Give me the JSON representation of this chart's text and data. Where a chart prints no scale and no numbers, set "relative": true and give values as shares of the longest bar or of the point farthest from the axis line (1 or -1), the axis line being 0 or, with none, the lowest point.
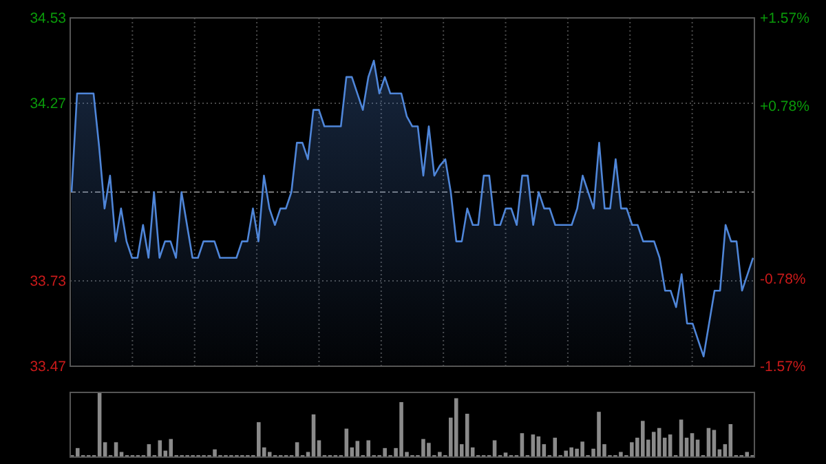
{
  "chart_data": [
    {
      "type": "area",
      "categories": [
        null,
        null,
        null,
        null,
        null,
        null,
        null,
        null,
        null,
        null,
        null,
        null,
        null,
        null,
        null,
        null,
        null,
        null,
        null,
        null,
        null,
        null,
        null,
        null,
        null,
        null,
        null,
        null,
        null,
        null,
        null,
        null,
        null,
        null,
        null,
        null,
        null,
        null,
        null,
        null,
        null,
        null,
        null,
        null,
        null,
        null,
        null,
        null,
        null,
        null,
        null,
        null,
        null,
        null,
        null,
        null,
        null,
        null,
        null,
        null,
        null,
        null,
        null,
        null,
        null,
        null,
        null,
        null,
        null,
        null,
        null,
        null,
        null,
        null,
        null,
        null,
        null,
        null,
        null,
        null,
        null,
        null,
        null,
        null,
        null,
        null,
        null,
        null,
        null,
        null,
        null,
        null,
        null,
        null,
        null,
        null,
        null,
        null,
        null,
        null,
        null,
        null,
        null,
        null,
        null,
        null,
        null,
        null,
        null,
        null,
        null,
        null,
        null,
        null,
        null,
        null,
        null,
        null,
        null,
        null,
        null,
        null,
        null,
        null,
        null
      ],
      "ylim": [
        33.47,
        34.53
      ],
      "yticks": [
        33.47,
        33.73,
        34.27,
        34.53
      ],
      "ref_lines": [
        {
          "axis": "y",
          "value": 34,
          "color": "#777777",
          "line_style": "dashed"
        }
      ],
      "y2lim": [
        -1.57,
        1.57
      ],
      "y2ticks": [
        {
          "value": -1.57,
          "label": "-1.57%"
        },
        {
          "value": -0.78,
          "label": "-0.78%"
        },
        {
          "value": 0.78,
          "label": "+0.78%"
        },
        {
          "value": 1.57,
          "label": "+1.57%"
        }
      ],
      "grid": true,
      "series": [
        {
          "color": "#4f86d9",
          "values": [
            34.0,
            34.3,
            34.3,
            34.3,
            34.3,
            34.14,
            33.95,
            34.05,
            33.85,
            33.95,
            33.85,
            33.8,
            33.8,
            33.9,
            33.8,
            34.0,
            33.8,
            33.85,
            33.85,
            33.8,
            34.0,
            33.9,
            33.8,
            33.8,
            33.85,
            33.85,
            33.85,
            33.8,
            33.8,
            33.8,
            33.8,
            33.85,
            33.85,
            33.95,
            33.85,
            34.05,
            33.95,
            33.9,
            33.95,
            33.95,
            34.0,
            34.15,
            34.15,
            34.1,
            34.25,
            34.25,
            34.2,
            34.2,
            34.2,
            34.2,
            34.35,
            34.35,
            34.3,
            34.25,
            34.35,
            34.4,
            34.3,
            34.35,
            34.3,
            34.3,
            34.3,
            34.23,
            34.2,
            34.2,
            34.05,
            34.2,
            34.05,
            34.08,
            34.1,
            34.0,
            33.85,
            33.85,
            33.95,
            33.9,
            33.9,
            34.05,
            34.05,
            33.9,
            33.9,
            33.95,
            33.95,
            33.9,
            34.05,
            34.05,
            33.9,
            34.0,
            33.95,
            33.95,
            33.9,
            33.9,
            33.9,
            33.9,
            33.95,
            34.05,
            34.0,
            33.95,
            34.15,
            33.95,
            33.95,
            34.1,
            33.95,
            33.95,
            33.9,
            33.9,
            33.85,
            33.85,
            33.85,
            33.8,
            33.7,
            33.7,
            33.65,
            33.75,
            33.6,
            33.6,
            33.55,
            33.5,
            33.6,
            33.7,
            33.7,
            33.9,
            33.85,
            33.85,
            33.7,
            33.75,
            33.8
          ]
        }
      ]
    },
    {
      "type": "bar",
      "relative": true,
      "categories": [
        null,
        null,
        null,
        null,
        null,
        null,
        null,
        null,
        null,
        null,
        null,
        null,
        null,
        null,
        null,
        null,
        null,
        null,
        null,
        null,
        null,
        null,
        null,
        null,
        null,
        null,
        null,
        null,
        null,
        null,
        null,
        null,
        null,
        null,
        null,
        null,
        null,
        null,
        null,
        null,
        null,
        null,
        null,
        null,
        null,
        null,
        null,
        null,
        null,
        null,
        null,
        null,
        null,
        null,
        null,
        null,
        null,
        null,
        null,
        null,
        null,
        null,
        null,
        null,
        null,
        null,
        null,
        null,
        null,
        null,
        null,
        null,
        null,
        null,
        null,
        null,
        null,
        null,
        null,
        null,
        null,
        null,
        null,
        null,
        null,
        null,
        null,
        null,
        null,
        null,
        null,
        null,
        null,
        null,
        null,
        null,
        null,
        null,
        null,
        null,
        null,
        null,
        null,
        null,
        null,
        null,
        null,
        null,
        null,
        null,
        null,
        null,
        null,
        null,
        null,
        null,
        null,
        null,
        null,
        null,
        null,
        null,
        null,
        null,
        null
      ],
      "color": "#8a8a8a",
      "values": [
        0.03,
        0.14,
        0.03,
        0.03,
        0.03,
        1,
        0.23,
        0.03,
        0.23,
        0.08,
        0.03,
        0.03,
        0.03,
        0.03,
        0.2,
        0.03,
        0.26,
        0.1,
        0.28,
        0.03,
        0.03,
        0.03,
        0.03,
        0.03,
        0.03,
        0.03,
        0.12,
        0.03,
        0.03,
        0.03,
        0.03,
        0.03,
        0.03,
        0.03,
        0.54,
        0.15,
        0.08,
        0.03,
        0.03,
        0.03,
        0.03,
        0.23,
        0.03,
        0.08,
        0.66,
        0.26,
        0.03,
        0.03,
        0.03,
        0.03,
        0.44,
        0.15,
        0.25,
        0.03,
        0.26,
        0.03,
        0.03,
        0.14,
        0.03,
        0.14,
        0.85,
        0.08,
        0.03,
        0.03,
        0.28,
        0.22,
        0.03,
        0.08,
        0.03,
        0.61,
        0.91,
        0.2,
        0.67,
        0.15,
        0.03,
        0.03,
        0.03,
        0.26,
        0.03,
        0.07,
        0.03,
        0.03,
        0.37,
        0.03,
        0.35,
        0.32,
        0.2,
        0.03,
        0.3,
        0.03,
        0.1,
        0.15,
        0.13,
        0.24,
        0.03,
        0.13,
        0.7,
        0.2,
        0.03,
        0.03,
        0.08,
        0.03,
        0.23,
        0.3,
        0.56,
        0.27,
        0.39,
        0.45,
        0.3,
        0.35,
        0.03,
        0.58,
        0.3,
        0.37,
        0.27,
        0.03,
        0.45,
        0.42,
        0.12,
        0.2,
        0.51,
        0.03,
        0.03,
        0.08,
        0.03
      ]
    }
  ]
}
